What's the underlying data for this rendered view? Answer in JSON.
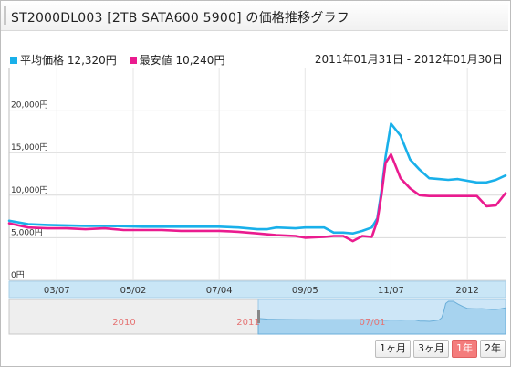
{
  "title": "ST2000DL003 [2TB SATA600 5900] の価格推移グラフ",
  "legend": [
    {
      "label": "平均価格 12,320円",
      "color": "#19b0ea"
    },
    {
      "label": "最安値 10,240円",
      "color": "#ea1b8f"
    }
  ],
  "period": "2011年01月31日 - 2012年01月30日",
  "range_buttons": [
    {
      "label": "1ヶ月",
      "active": false
    },
    {
      "label": "3ヶ月",
      "active": false
    },
    {
      "label": "1年",
      "active": true
    },
    {
      "label": "2年",
      "active": false
    }
  ],
  "navigator": {
    "labels": [
      "2010",
      "2011",
      "07/01"
    ]
  },
  "chart_data": {
    "type": "line",
    "ylim": [
      0,
      25000
    ],
    "y_ticks": [
      {
        "value": 0,
        "label": "0円"
      },
      {
        "value": 5000,
        "label": "5,000円"
      },
      {
        "value": 10000,
        "label": "10,000円"
      },
      {
        "value": 15000,
        "label": "15,000円"
      },
      {
        "value": 20000,
        "label": "20,000円"
      }
    ],
    "x_range": [
      "2011-01-31",
      "2012-01-30"
    ],
    "x_ticks": [
      {
        "date": "2011-03-07",
        "label": "03/07"
      },
      {
        "date": "2011-05-02",
        "label": "05/02"
      },
      {
        "date": "2011-07-04",
        "label": "07/04"
      },
      {
        "date": "2011-09-05",
        "label": "09/05"
      },
      {
        "date": "2011-11-07",
        "label": "11/07"
      },
      {
        "date": "2012-01-02",
        "label": "2012"
      }
    ],
    "grid": true,
    "series": [
      {
        "name": "平均価格",
        "color": "#19b0ea",
        "points": [
          [
            "2011-01-31",
            7000
          ],
          [
            "2011-02-14",
            6600
          ],
          [
            "2011-02-28",
            6500
          ],
          [
            "2011-03-14",
            6450
          ],
          [
            "2011-03-28",
            6400
          ],
          [
            "2011-04-11",
            6400
          ],
          [
            "2011-04-25",
            6350
          ],
          [
            "2011-05-09",
            6300
          ],
          [
            "2011-05-23",
            6300
          ],
          [
            "2011-06-06",
            6300
          ],
          [
            "2011-06-20",
            6300
          ],
          [
            "2011-07-04",
            6300
          ],
          [
            "2011-07-18",
            6200
          ],
          [
            "2011-08-01",
            6000
          ],
          [
            "2011-08-08",
            6000
          ],
          [
            "2011-08-15",
            6200
          ],
          [
            "2011-08-29",
            6100
          ],
          [
            "2011-09-05",
            6200
          ],
          [
            "2011-09-19",
            6200
          ],
          [
            "2011-09-26",
            5600
          ],
          [
            "2011-10-03",
            5600
          ],
          [
            "2011-10-10",
            5500
          ],
          [
            "2011-10-17",
            5800
          ],
          [
            "2011-10-24",
            6200
          ],
          [
            "2011-10-28",
            7300
          ],
          [
            "2011-10-31",
            10500
          ],
          [
            "2011-11-03",
            14500
          ],
          [
            "2011-11-07",
            18400
          ],
          [
            "2011-11-14",
            17000
          ],
          [
            "2011-11-21",
            14200
          ],
          [
            "2011-11-28",
            13000
          ],
          [
            "2011-12-05",
            12000
          ],
          [
            "2011-12-12",
            11900
          ],
          [
            "2011-12-19",
            11800
          ],
          [
            "2011-12-26",
            11900
          ],
          [
            "2012-01-02",
            11700
          ],
          [
            "2012-01-09",
            11500
          ],
          [
            "2012-01-16",
            11500
          ],
          [
            "2012-01-23",
            11800
          ],
          [
            "2012-01-30",
            12320
          ]
        ]
      },
      {
        "name": "最安値",
        "color": "#ea1b8f",
        "points": [
          [
            "2011-01-31",
            6700
          ],
          [
            "2011-02-14",
            6200
          ],
          [
            "2011-02-28",
            6100
          ],
          [
            "2011-03-14",
            6100
          ],
          [
            "2011-03-28",
            6000
          ],
          [
            "2011-04-11",
            6100
          ],
          [
            "2011-04-25",
            5900
          ],
          [
            "2011-05-09",
            5900
          ],
          [
            "2011-05-23",
            5900
          ],
          [
            "2011-06-06",
            5800
          ],
          [
            "2011-06-20",
            5800
          ],
          [
            "2011-07-04",
            5800
          ],
          [
            "2011-07-18",
            5700
          ],
          [
            "2011-08-01",
            5500
          ],
          [
            "2011-08-15",
            5300
          ],
          [
            "2011-08-29",
            5200
          ],
          [
            "2011-09-05",
            5000
          ],
          [
            "2011-09-19",
            5100
          ],
          [
            "2011-09-26",
            5200
          ],
          [
            "2011-10-03",
            5200
          ],
          [
            "2011-10-10",
            4600
          ],
          [
            "2011-10-17",
            5200
          ],
          [
            "2011-10-24",
            5100
          ],
          [
            "2011-10-28",
            7000
          ],
          [
            "2011-10-31",
            10000
          ],
          [
            "2011-11-03",
            13800
          ],
          [
            "2011-11-07",
            14800
          ],
          [
            "2011-11-14",
            12000
          ],
          [
            "2011-11-21",
            10800
          ],
          [
            "2011-11-28",
            10000
          ],
          [
            "2011-12-05",
            9900
          ],
          [
            "2011-12-12",
            9900
          ],
          [
            "2011-12-19",
            9900
          ],
          [
            "2011-12-26",
            9900
          ],
          [
            "2012-01-02",
            9900
          ],
          [
            "2012-01-09",
            9900
          ],
          [
            "2012-01-16",
            8700
          ],
          [
            "2012-01-23",
            8800
          ],
          [
            "2012-01-30",
            10240
          ]
        ]
      }
    ]
  }
}
